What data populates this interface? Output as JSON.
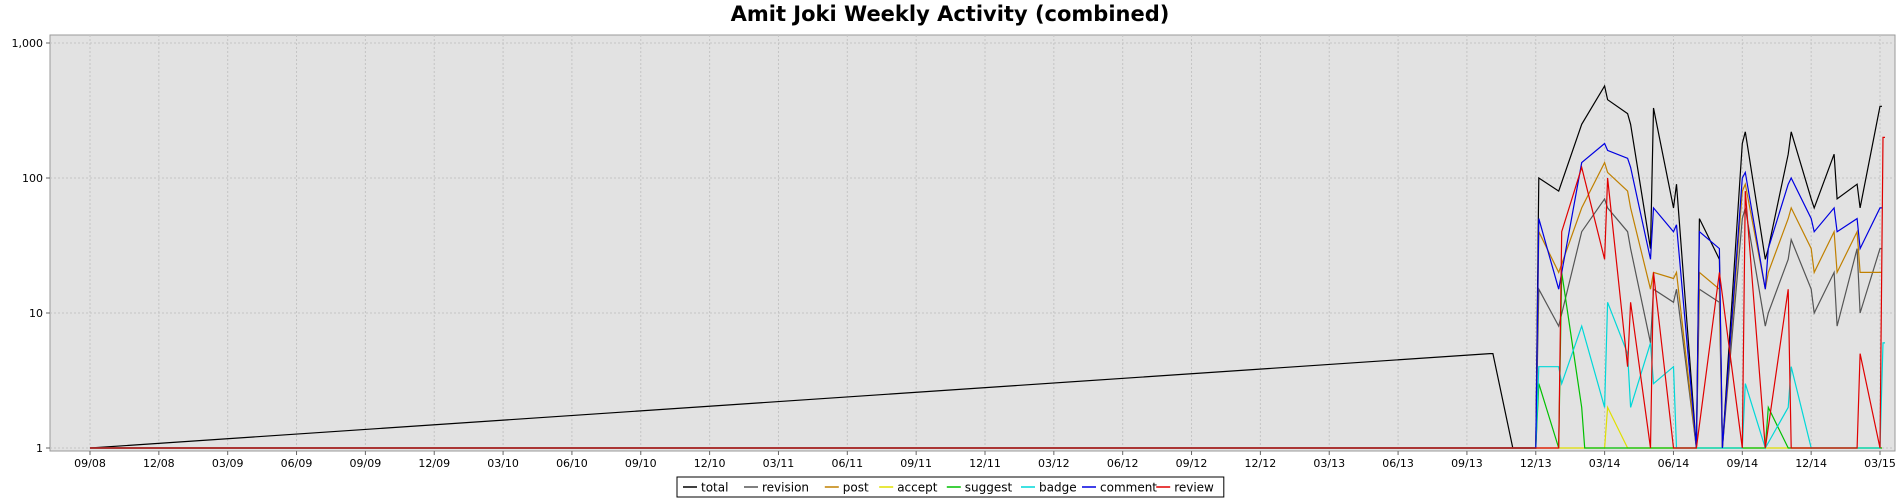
{
  "chart_data": {
    "type": "line",
    "title": "Amit Joki Weekly Activity (combined)",
    "xlabel": "",
    "ylabel": "",
    "y_scale": "log",
    "ylim": [
      1,
      1000
    ],
    "grid": true,
    "legend_position": "bottom",
    "y_ticks": [
      "1",
      "10",
      "100",
      "1,000"
    ],
    "x_ticks": [
      "09/08",
      "12/08",
      "03/09",
      "06/09",
      "09/09",
      "12/09",
      "03/10",
      "06/10",
      "09/10",
      "12/10",
      "03/11",
      "06/11",
      "09/11",
      "12/11",
      "03/12",
      "06/12",
      "09/12",
      "12/12",
      "03/13",
      "06/13",
      "09/13",
      "12/13",
      "03/14",
      "06/14",
      "09/14",
      "12/14",
      "03/15"
    ],
    "x_start": "09/08",
    "x_end": "03/15",
    "series": [
      {
        "name": "total",
        "color": "#000000",
        "points": [
          [
            "10/13",
            5
          ],
          [
            "10/13",
            5
          ],
          [
            "11/13",
            1
          ],
          [
            "12/13",
            1
          ],
          [
            "12/13",
            100
          ],
          [
            "01/14",
            80
          ],
          [
            "02/14",
            250
          ],
          [
            "03/14",
            480
          ],
          [
            "03/14",
            380
          ],
          [
            "04/14",
            300
          ],
          [
            "04/14",
            250
          ],
          [
            "05/14",
            30
          ],
          [
            "05/14",
            330
          ],
          [
            "06/14",
            60
          ],
          [
            "06/14",
            90
          ],
          [
            "07/14",
            1
          ],
          [
            "07/14",
            50
          ],
          [
            "08/14",
            25
          ],
          [
            "08/14",
            1
          ],
          [
            "09/14",
            180
          ],
          [
            "09/14",
            220
          ],
          [
            "10/14",
            25
          ],
          [
            "10/14",
            30
          ],
          [
            "11/14",
            150
          ],
          [
            "11/14",
            220
          ],
          [
            "12/14",
            70
          ],
          [
            "12/14",
            60
          ],
          [
            "01/15",
            150
          ],
          [
            "01/15",
            70
          ],
          [
            "02/15",
            90
          ],
          [
            "02/15",
            60
          ],
          [
            "03/15",
            340
          ]
        ]
      },
      {
        "name": "revision",
        "color": "#555555",
        "points": [
          [
            "12/13",
            1
          ],
          [
            "12/13",
            15
          ],
          [
            "01/14",
            8
          ],
          [
            "02/14",
            40
          ],
          [
            "03/14",
            70
          ],
          [
            "03/14",
            60
          ],
          [
            "04/14",
            40
          ],
          [
            "04/14",
            30
          ],
          [
            "05/14",
            6
          ],
          [
            "05/14",
            15
          ],
          [
            "06/14",
            12
          ],
          [
            "06/14",
            15
          ],
          [
            "07/14",
            1
          ],
          [
            "07/14",
            15
          ],
          [
            "08/14",
            12
          ],
          [
            "08/14",
            1
          ],
          [
            "09/14",
            50
          ],
          [
            "09/14",
            60
          ],
          [
            "10/14",
            8
          ],
          [
            "10/14",
            10
          ],
          [
            "11/14",
            25
          ],
          [
            "11/14",
            35
          ],
          [
            "12/14",
            15
          ],
          [
            "12/14",
            10
          ],
          [
            "01/15",
            20
          ],
          [
            "01/15",
            8
          ],
          [
            "02/15",
            30
          ],
          [
            "02/15",
            10
          ],
          [
            "03/15",
            30
          ]
        ]
      },
      {
        "name": "post",
        "color": "#c08000",
        "points": [
          [
            "12/13",
            1
          ],
          [
            "12/13",
            40
          ],
          [
            "01/14",
            20
          ],
          [
            "02/14",
            60
          ],
          [
            "03/14",
            130
          ],
          [
            "03/14",
            110
          ],
          [
            "04/14",
            80
          ],
          [
            "04/14",
            60
          ],
          [
            "05/14",
            15
          ],
          [
            "05/14",
            20
          ],
          [
            "06/14",
            18
          ],
          [
            "06/14",
            20
          ],
          [
            "07/14",
            1
          ],
          [
            "07/14",
            20
          ],
          [
            "08/14",
            15
          ],
          [
            "08/14",
            1
          ],
          [
            "09/14",
            80
          ],
          [
            "09/14",
            90
          ],
          [
            "10/14",
            15
          ],
          [
            "10/14",
            20
          ],
          [
            "11/14",
            50
          ],
          [
            "11/14",
            60
          ],
          [
            "12/14",
            30
          ],
          [
            "12/14",
            20
          ],
          [
            "01/15",
            40
          ],
          [
            "01/15",
            20
          ],
          [
            "02/15",
            40
          ],
          [
            "02/15",
            20
          ],
          [
            "03/15",
            20
          ]
        ]
      },
      {
        "name": "accept",
        "color": "#e0e000",
        "points": [
          [
            "12/13",
            1
          ],
          [
            "03/14",
            1
          ],
          [
            "03/14",
            2
          ],
          [
            "04/14",
            1
          ],
          [
            "03/15",
            1
          ]
        ]
      },
      {
        "name": "suggest",
        "color": "#00c000",
        "points": [
          [
            "12/13",
            1
          ],
          [
            "12/13",
            3
          ],
          [
            "01/14",
            1
          ],
          [
            "01/14",
            20
          ],
          [
            "02/14",
            2
          ],
          [
            "02/14",
            1
          ],
          [
            "10/14",
            1
          ],
          [
            "10/14",
            2
          ],
          [
            "11/14",
            1
          ],
          [
            "03/15",
            1
          ]
        ]
      },
      {
        "name": "badge",
        "color": "#00d8d8",
        "points": [
          [
            "12/13",
            1
          ],
          [
            "12/13",
            4
          ],
          [
            "01/14",
            4
          ],
          [
            "01/14",
            3
          ],
          [
            "02/14",
            8
          ],
          [
            "03/14",
            2
          ],
          [
            "03/14",
            12
          ],
          [
            "04/14",
            5
          ],
          [
            "04/14",
            2
          ],
          [
            "05/14",
            6
          ],
          [
            "05/14",
            3
          ],
          [
            "06/14",
            4
          ],
          [
            "06/14",
            1
          ],
          [
            "09/14",
            1
          ],
          [
            "09/14",
            3
          ],
          [
            "10/14",
            1
          ],
          [
            "11/14",
            2
          ],
          [
            "11/14",
            4
          ],
          [
            "12/14",
            1
          ],
          [
            "03/15",
            1
          ],
          [
            "03/15",
            6
          ]
        ]
      },
      {
        "name": "comment",
        "color": "#0000e0",
        "points": [
          [
            "12/13",
            1
          ],
          [
            "12/13",
            50
          ],
          [
            "01/14",
            15
          ],
          [
            "02/14",
            130
          ],
          [
            "03/14",
            180
          ],
          [
            "03/14",
            160
          ],
          [
            "04/14",
            140
          ],
          [
            "04/14",
            120
          ],
          [
            "05/14",
            25
          ],
          [
            "05/14",
            60
          ],
          [
            "06/14",
            40
          ],
          [
            "06/14",
            45
          ],
          [
            "07/14",
            1
          ],
          [
            "07/14",
            40
          ],
          [
            "08/14",
            30
          ],
          [
            "08/14",
            1
          ],
          [
            "09/14",
            100
          ],
          [
            "09/14",
            110
          ],
          [
            "10/14",
            15
          ],
          [
            "10/14",
            30
          ],
          [
            "11/14",
            90
          ],
          [
            "11/14",
            100
          ],
          [
            "12/14",
            50
          ],
          [
            "12/14",
            40
          ],
          [
            "01/15",
            60
          ],
          [
            "01/15",
            40
          ],
          [
            "02/15",
            50
          ],
          [
            "02/15",
            30
          ],
          [
            "03/15",
            60
          ]
        ]
      },
      {
        "name": "review",
        "color": "#e00000",
        "points": [
          [
            "12/13",
            1
          ],
          [
            "01/14",
            1
          ],
          [
            "01/14",
            40
          ],
          [
            "02/14",
            120
          ],
          [
            "03/14",
            25
          ],
          [
            "03/14",
            100
          ],
          [
            "04/14",
            4
          ],
          [
            "04/14",
            12
          ],
          [
            "05/14",
            1
          ],
          [
            "05/14",
            20
          ],
          [
            "06/14",
            1
          ],
          [
            "07/14",
            1
          ],
          [
            "08/14",
            20
          ],
          [
            "09/14",
            1
          ],
          [
            "09/14",
            80
          ],
          [
            "10/14",
            1
          ],
          [
            "11/14",
            15
          ],
          [
            "11/14",
            1
          ],
          [
            "12/14",
            1
          ],
          [
            "02/15",
            1
          ],
          [
            "02/15",
            5
          ],
          [
            "03/15",
            1
          ],
          [
            "03/15",
            200
          ]
        ]
      }
    ]
  }
}
